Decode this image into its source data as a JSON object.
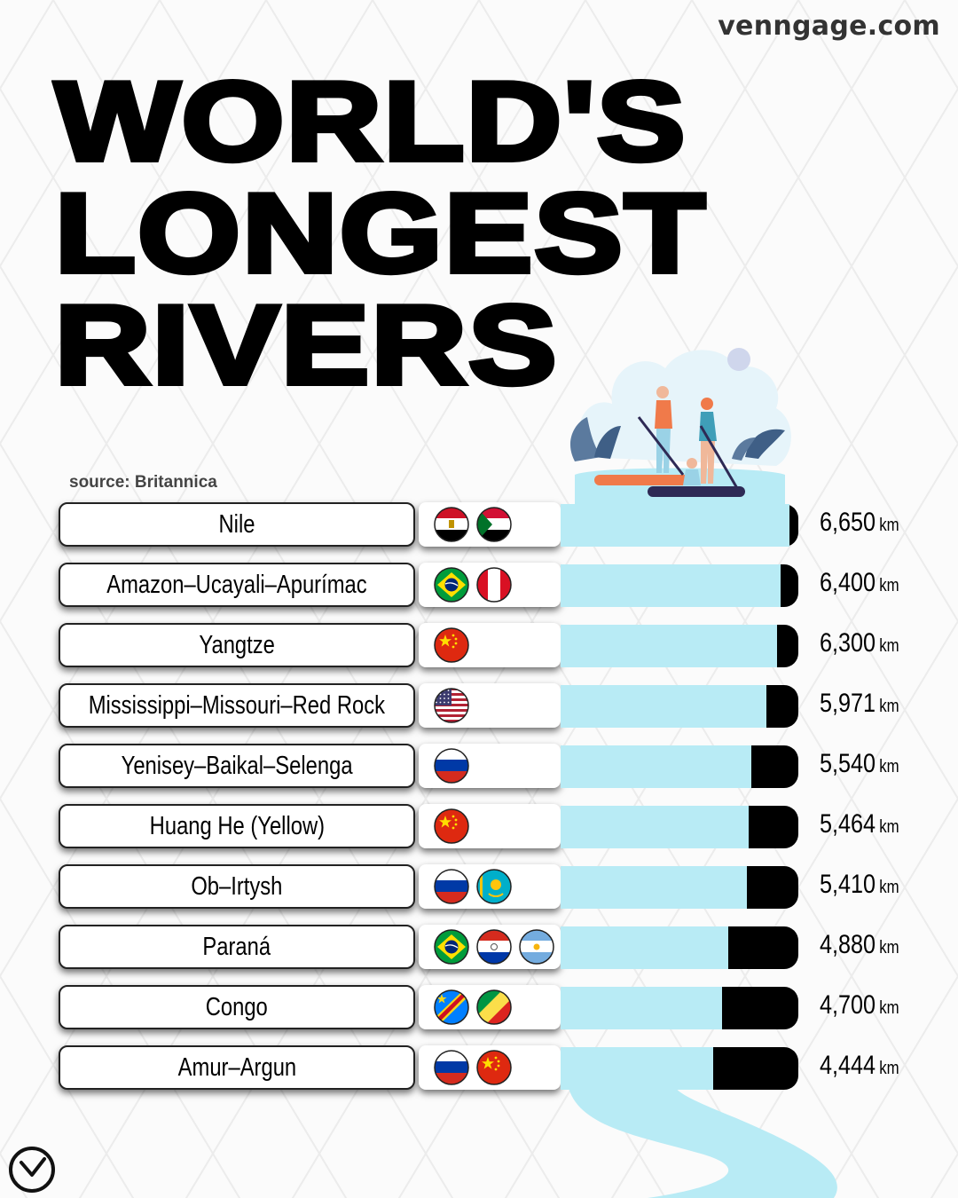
{
  "site": "venngage.com",
  "title_lines": [
    "WORLD'S",
    "LONGEST",
    "RIVERS"
  ],
  "source": "source: Britannica",
  "unit": "km",
  "colors": {
    "bar_fill": "#b8ebf5",
    "bar_track": "#000000",
    "background": "#fbfbfb"
  },
  "chart_data": {
    "type": "bar",
    "orientation": "horizontal",
    "title": "WORLD'S LONGEST RIVERS",
    "categories": [
      "Nile",
      "Amazon–Ucayali–Apurímac",
      "Yangtze",
      "Mississippi–Missouri–Red Rock",
      "Yenisey–Baikal–Selenga",
      "Huang He (Yellow)",
      "Ob–Irtysh",
      "Paraná",
      "Congo",
      "Amur–Argun"
    ],
    "values": [
      6650,
      6400,
      6300,
      5971,
      5540,
      5464,
      5410,
      4880,
      4700,
      4444
    ],
    "value_labels": [
      "6,650",
      "6,400",
      "6,300",
      "5,971",
      "5,540",
      "5,464",
      "5,410",
      "4,880",
      "4,700",
      "4,444"
    ],
    "flags": [
      [
        "egypt-flag-icon",
        "sudan-flag-icon"
      ],
      [
        "brazil-flag-icon",
        "peru-flag-icon"
      ],
      [
        "china-flag-icon"
      ],
      [
        "usa-flag-icon"
      ],
      [
        "russia-flag-icon"
      ],
      [
        "china-flag-icon"
      ],
      [
        "russia-flag-icon",
        "kazakhstan-flag-icon"
      ],
      [
        "brazil-flag-icon",
        "paraguay-flag-icon",
        "argentina-flag-icon"
      ],
      [
        "dr-congo-flag-icon",
        "republic-of-congo-flag-icon"
      ],
      [
        "russia-flag-icon",
        "china-flag-icon"
      ]
    ]
  }
}
